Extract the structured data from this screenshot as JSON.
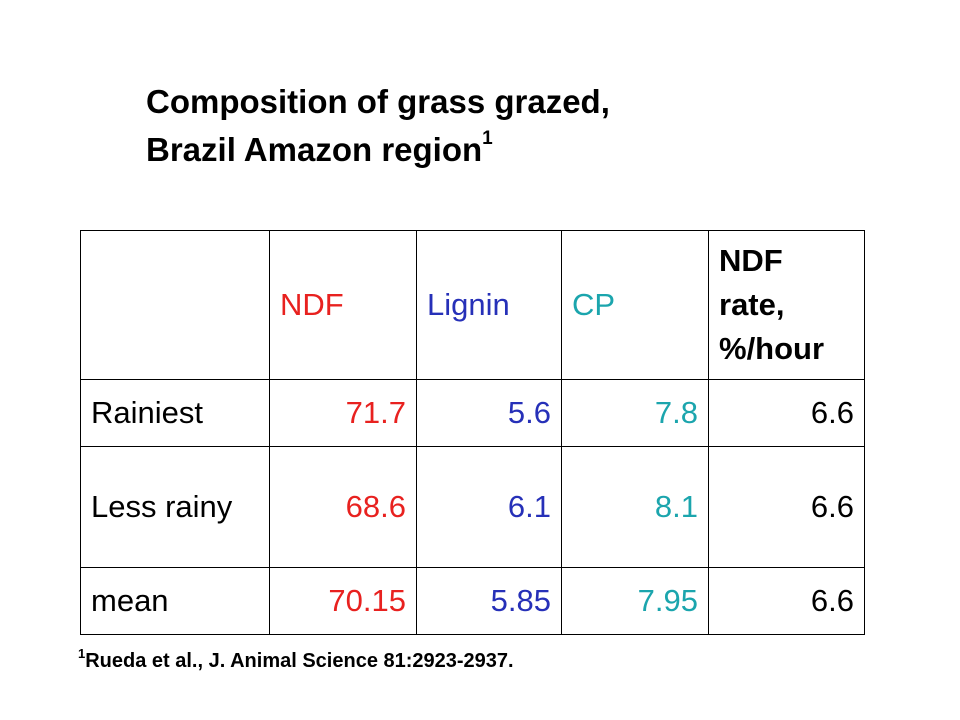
{
  "title": {
    "line1": "Composition of grass grazed,",
    "line2": "Brazil Amazon region",
    "superscript": "1"
  },
  "table": {
    "columns": [
      {
        "label": "NDF",
        "color": "#e8211f"
      },
      {
        "label": "Lignin",
        "color": "#2630b8"
      },
      {
        "label": "CP",
        "color": "#1ba5ad"
      },
      {
        "label": "NDF rate, %/hour",
        "color": "#000000"
      }
    ],
    "rows": [
      {
        "label": "Rainiest",
        "values": [
          "71.7",
          "5.6",
          "7.8",
          "6.6"
        ]
      },
      {
        "label": "Less rainy",
        "values": [
          "68.6",
          "6.1",
          "8.1",
          "6.6"
        ]
      },
      {
        "label": "mean",
        "values": [
          "70.15",
          "5.85",
          "7.95",
          "6.6"
        ]
      }
    ]
  },
  "footnote": {
    "marker": "1",
    "text": "Rueda et al., J. Animal Science 81:2923-2937."
  }
}
